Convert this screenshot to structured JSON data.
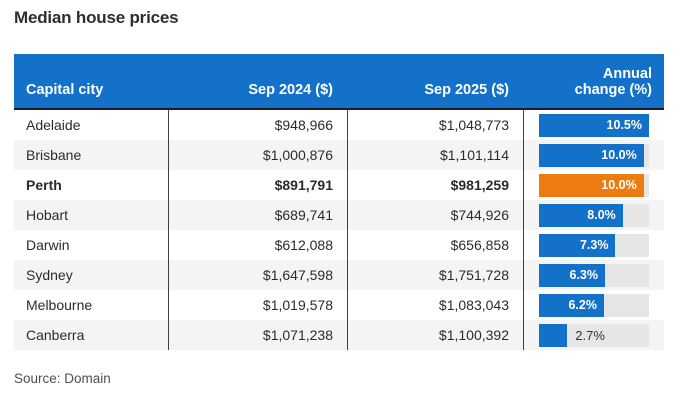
{
  "title": "Median house prices",
  "source": "Source: Domain",
  "colors": {
    "header_bg": "#1471c9",
    "bar_blue": "#1471c9",
    "bar_orange": "#ec7c10",
    "bar_track": "#e6e6e6",
    "stripe": "#f4f4f4"
  },
  "table": {
    "header": {
      "city_label": "Capital city",
      "sep2024_label": "Sep 2024 ($)",
      "sep2025_label": "Sep 2025 ($)",
      "annual_line1": "Annual",
      "annual_line2": "change (%)"
    },
    "bar_max_pct": 10.5,
    "rows": [
      {
        "city": "Adelaide",
        "sep2024": "$948,966",
        "sep2025": "$1,048,773",
        "change_pct": 10.5,
        "change_label": "10.5%",
        "highlight": false,
        "label_position": "inside"
      },
      {
        "city": "Brisbane",
        "sep2024": "$1,000,876",
        "sep2025": "$1,101,114",
        "change_pct": 10.0,
        "change_label": "10.0%",
        "highlight": false,
        "label_position": "inside"
      },
      {
        "city": "Perth",
        "sep2024": "$891,791",
        "sep2025": "$981,259",
        "change_pct": 10.0,
        "change_label": "10.0%",
        "highlight": true,
        "label_position": "inside"
      },
      {
        "city": "Hobart",
        "sep2024": "$689,741",
        "sep2025": "$744,926",
        "change_pct": 8.0,
        "change_label": "8.0%",
        "highlight": false,
        "label_position": "inside"
      },
      {
        "city": "Darwin",
        "sep2024": "$612,088",
        "sep2025": "$656,858",
        "change_pct": 7.3,
        "change_label": "7.3%",
        "highlight": false,
        "label_position": "inside"
      },
      {
        "city": "Sydney",
        "sep2024": "$1,647,598",
        "sep2025": "$1,751,728",
        "change_pct": 6.3,
        "change_label": "6.3%",
        "highlight": false,
        "label_position": "inside"
      },
      {
        "city": "Melbourne",
        "sep2024": "$1,019,578",
        "sep2025": "$1,083,043",
        "change_pct": 6.2,
        "change_label": "6.2%",
        "highlight": false,
        "label_position": "inside"
      },
      {
        "city": "Canberra",
        "sep2024": "$1,071,238",
        "sep2025": "$1,100,392",
        "change_pct": 2.7,
        "change_label": "2.7%",
        "highlight": false,
        "label_position": "outside"
      }
    ]
  },
  "chart_data": {
    "type": "table",
    "title": "Median house prices",
    "columns": [
      "Capital city",
      "Sep 2024 ($)",
      "Sep 2025 ($)",
      "Annual change (%)"
    ],
    "rows": [
      [
        "Adelaide",
        948966,
        1048773,
        10.5
      ],
      [
        "Brisbane",
        1000876,
        1101114,
        10.0
      ],
      [
        "Perth",
        891791,
        981259,
        10.0
      ],
      [
        "Hobart",
        689741,
        744926,
        8.0
      ],
      [
        "Darwin",
        612088,
        656858,
        7.3
      ],
      [
        "Sydney",
        1647598,
        1751728,
        6.3
      ],
      [
        "Melbourne",
        1019578,
        1083043,
        6.2
      ],
      [
        "Canberra",
        1071238,
        1100392,
        2.7
      ]
    ],
    "embedded_bar": {
      "series_label": "Annual change (%)",
      "categories": [
        "Adelaide",
        "Brisbane",
        "Perth",
        "Hobart",
        "Darwin",
        "Sydney",
        "Melbourne",
        "Canberra"
      ],
      "values": [
        10.5,
        10.0,
        10.0,
        8.0,
        7.3,
        6.3,
        6.2,
        2.7
      ],
      "axis_max": 10.5,
      "highlight_category": "Perth",
      "bar_color": "#1471c9",
      "highlight_color": "#ec7c10"
    },
    "source": "Source: Domain"
  }
}
